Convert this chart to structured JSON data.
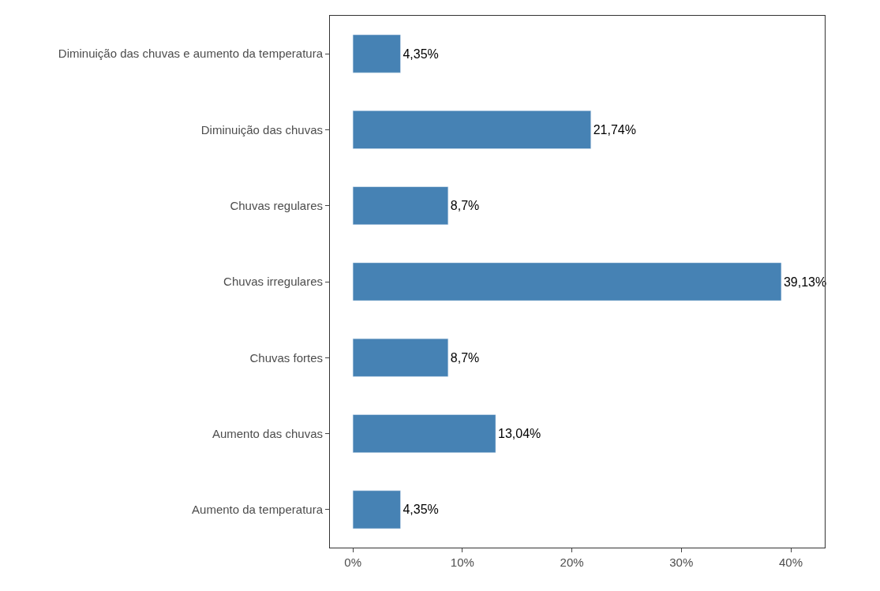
{
  "chart_data": {
    "type": "bar",
    "orientation": "horizontal",
    "categories": [
      "Diminuição das chuvas e aumento da temperatura",
      "Diminuição das chuvas",
      "Chuvas regulares",
      "Chuvas irregulares",
      "Chuvas fortes",
      "Aumento das chuvas",
      "Aumento da temperatura"
    ],
    "values": [
      4.35,
      21.74,
      8.7,
      39.13,
      8.7,
      13.04,
      4.35
    ],
    "value_labels": [
      "4,35%",
      "21,74%",
      "8,7%",
      "39,13%",
      "8,7%",
      "13,04%",
      "4,35%"
    ],
    "color": "#4682b4",
    "xlim": [
      -2.1,
      43.1
    ],
    "xticks": [
      {
        "value": 0,
        "label": "0%"
      },
      {
        "value": 10,
        "label": "10%"
      },
      {
        "value": 20,
        "label": "20%"
      },
      {
        "value": 30,
        "label": "30%"
      },
      {
        "value": 40,
        "label": "40%"
      }
    ],
    "legend": false
  }
}
